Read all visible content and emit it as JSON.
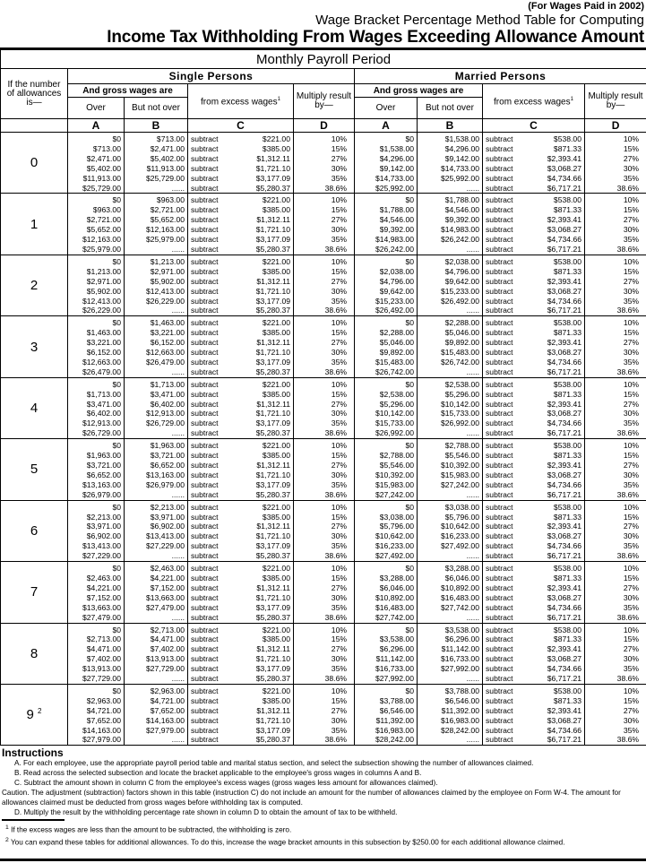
{
  "header": {
    "note": "(For Wages Paid in 2002)",
    "title_line1": "Wage Bracket Percentage Method Table for Computing",
    "title_line2": "Income Tax Withholding From Wages Exceeding Allowance Amount",
    "period": "Monthly Payroll Period"
  },
  "columns": {
    "allowances_label": "If the number of allowances is—",
    "single": "Single Persons",
    "married": "Married Persons",
    "gross": "And gross wages are",
    "over": "Over",
    "but_not_over": "But not over",
    "from_excess": "from excess wages",
    "footnote_mark": "1",
    "multiply": "Multiply result by—",
    "letters": [
      "A",
      "B",
      "C",
      "D"
    ]
  },
  "subtract_word": "subtract",
  "single_subtract": [
    "$221.00",
    "$385.00",
    "$1,312.11",
    "$1,721.10",
    "$3,177.09",
    "$5,280.37"
  ],
  "married_subtract": [
    "$538.00",
    "$871.33",
    "$2,393.41",
    "$3,068.27",
    "$4,734.66",
    "$6,717.21"
  ],
  "percents": [
    "10%",
    "15%",
    "27%",
    "30%",
    "35%",
    "38.6%"
  ],
  "groups": [
    {
      "allowances": "0",
      "single_over": [
        "$0",
        "$713.00",
        "$2,471.00",
        "$5,402.00",
        "$11,913.00",
        "$25,729.00"
      ],
      "single_notover": [
        "$713.00",
        "$2,471.00",
        "$5,402.00",
        "$11,913.00",
        "$25,729.00",
        "......"
      ],
      "married_over": [
        "$0",
        "$1,538.00",
        "$4,296.00",
        "$9,142.00",
        "$14,733.00",
        "$25,992.00"
      ],
      "married_notover": [
        "$1,538.00",
        "$4,296.00",
        "$9,142.00",
        "$14,733.00",
        "$25,992.00",
        "......"
      ]
    },
    {
      "allowances": "1",
      "single_over": [
        "$0",
        "$963.00",
        "$2,721.00",
        "$5,652.00",
        "$12,163.00",
        "$25,979.00"
      ],
      "single_notover": [
        "$963.00",
        "$2,721.00",
        "$5,652.00",
        "$12,163.00",
        "$25,979.00",
        "......"
      ],
      "married_over": [
        "$0",
        "$1,788.00",
        "$4,546.00",
        "$9,392.00",
        "$14,983.00",
        "$26,242.00"
      ],
      "married_notover": [
        "$1,788.00",
        "$4,546.00",
        "$9,392.00",
        "$14,983.00",
        "$26,242.00",
        "......"
      ]
    },
    {
      "allowances": "2",
      "single_over": [
        "$0",
        "$1,213.00",
        "$2,971.00",
        "$5,902.00",
        "$12,413.00",
        "$26,229.00"
      ],
      "single_notover": [
        "$1,213.00",
        "$2,971.00",
        "$5,902.00",
        "$12,413.00",
        "$26,229.00",
        "......"
      ],
      "married_over": [
        "$0",
        "$2,038.00",
        "$4,796.00",
        "$9,642.00",
        "$15,233.00",
        "$26,492.00"
      ],
      "married_notover": [
        "$2,038.00",
        "$4,796.00",
        "$9,642.00",
        "$15,233.00",
        "$26,492.00",
        "......"
      ]
    },
    {
      "allowances": "3",
      "single_over": [
        "$0",
        "$1,463.00",
        "$3,221.00",
        "$6,152.00",
        "$12,663.00",
        "$26,479.00"
      ],
      "single_notover": [
        "$1,463.00",
        "$3,221.00",
        "$6,152.00",
        "$12,663.00",
        "$26,479.00",
        "......"
      ],
      "married_over": [
        "$0",
        "$2,288.00",
        "$5,046.00",
        "$9,892.00",
        "$15,483.00",
        "$26,742.00"
      ],
      "married_notover": [
        "$2,288.00",
        "$5,046.00",
        "$9,892.00",
        "$15,483.00",
        "$26,742.00",
        "......"
      ]
    },
    {
      "allowances": "4",
      "single_over": [
        "$0",
        "$1,713.00",
        "$3,471.00",
        "$6,402.00",
        "$12,913.00",
        "$26,729.00"
      ],
      "single_notover": [
        "$1,713.00",
        "$3,471.00",
        "$6,402.00",
        "$12,913.00",
        "$26,729.00",
        "......"
      ],
      "married_over": [
        "$0",
        "$2,538.00",
        "$5,296.00",
        "$10,142.00",
        "$15,733.00",
        "$26,992.00"
      ],
      "married_notover": [
        "$2,538.00",
        "$5,296.00",
        "$10,142.00",
        "$15,733.00",
        "$26,992.00",
        "......"
      ]
    },
    {
      "allowances": "5",
      "single_over": [
        "$0",
        "$1,963.00",
        "$3,721.00",
        "$6,652.00",
        "$13,163.00",
        "$26,979.00"
      ],
      "single_notover": [
        "$1,963.00",
        "$3,721.00",
        "$6,652.00",
        "$13,163.00",
        "$26,979.00",
        "......"
      ],
      "married_over": [
        "$0",
        "$2,788.00",
        "$5,546.00",
        "$10,392.00",
        "$15,983.00",
        "$27,242.00"
      ],
      "married_notover": [
        "$2,788.00",
        "$5,546.00",
        "$10,392.00",
        "$15,983.00",
        "$27,242.00",
        "......"
      ]
    },
    {
      "allowances": "6",
      "single_over": [
        "$0",
        "$2,213.00",
        "$3,971.00",
        "$6,902.00",
        "$13,413.00",
        "$27,229.00"
      ],
      "single_notover": [
        "$2,213.00",
        "$3,971.00",
        "$6,902.00",
        "$13,413.00",
        "$27,229.00",
        "......"
      ],
      "married_over": [
        "$0",
        "$3,038.00",
        "$5,796.00",
        "$10,642.00",
        "$16,233.00",
        "$27,492.00"
      ],
      "married_notover": [
        "$3,038.00",
        "$5,796.00",
        "$10,642.00",
        "$16,233.00",
        "$27,492.00",
        "......"
      ]
    },
    {
      "allowances": "7",
      "single_over": [
        "$0",
        "$2,463.00",
        "$4,221.00",
        "$7,152.00",
        "$13,663.00",
        "$27,479.00"
      ],
      "single_notover": [
        "$2,463.00",
        "$4,221.00",
        "$7,152.00",
        "$13,663.00",
        "$27,479.00",
        "......"
      ],
      "married_over": [
        "$0",
        "$3,288.00",
        "$6,046.00",
        "$10,892.00",
        "$16,483.00",
        "$27,742.00"
      ],
      "married_notover": [
        "$3,288.00",
        "$6,046.00",
        "$10,892.00",
        "$16,483.00",
        "$27,742.00",
        "......"
      ]
    },
    {
      "allowances": "8",
      "single_over": [
        "$0",
        "$2,713.00",
        "$4,471.00",
        "$7,402.00",
        "$13,913.00",
        "$27,729.00"
      ],
      "single_notover": [
        "$2,713.00",
        "$4,471.00",
        "$7,402.00",
        "$13,913.00",
        "$27,729.00",
        "......"
      ],
      "married_over": [
        "$0",
        "$3,538.00",
        "$6,296.00",
        "$11,142.00",
        "$16,733.00",
        "$27,992.00"
      ],
      "married_notover": [
        "$3,538.00",
        "$6,296.00",
        "$11,142.00",
        "$16,733.00",
        "$27,992.00",
        "......"
      ]
    },
    {
      "allowances": "9",
      "mark": "2",
      "single_over": [
        "$0",
        "$2,963.00",
        "$4,721.00",
        "$7,652.00",
        "$14,163.00",
        "$27,979.00"
      ],
      "single_notover": [
        "$2,963.00",
        "$4,721.00",
        "$7,652.00",
        "$14,163.00",
        "$27,979.00",
        "......"
      ],
      "married_over": [
        "$0",
        "$3,788.00",
        "$6,546.00",
        "$11,392.00",
        "$16,983.00",
        "$28,242.00"
      ],
      "married_notover": [
        "$3,788.00",
        "$6,546.00",
        "$11,392.00",
        "$16,983.00",
        "$28,242.00",
        "......"
      ]
    }
  ],
  "instructions": {
    "title": "Instructions",
    "a": "A. For each employee, use the appropriate payroll period table and marital status section, and select the subsection showing the number of allowances claimed.",
    "b": "B. Read across the selected subsection and locate the bracket applicable to the employee's gross wages in columns A and B.",
    "c": "C. Subtract the amount shown in column C from the employee's excess wages (gross wages less amount for allowances claimed).",
    "caution": "Caution.   The adjustment (subtraction) factors shown in this table (instruction C) do not include an amount for the number of allowances claimed by the employee on Form W-4. The amount for allowances claimed must be deducted from gross wages before withholding tax is computed.",
    "d": "D. Multiply the result by the withholding percentage rate shown in column D to obtain the amount of tax to be withheld."
  },
  "footnotes": [
    {
      "mark": "1",
      "text": "If the excess wages are less than the amount to be subtracted, the withholding is zero."
    },
    {
      "mark": "2",
      "text": "You can expand these tables for additional allowances. To do this, increase the wage bracket amounts in this subsection by $250.00 for each additional allowance claimed."
    }
  ]
}
